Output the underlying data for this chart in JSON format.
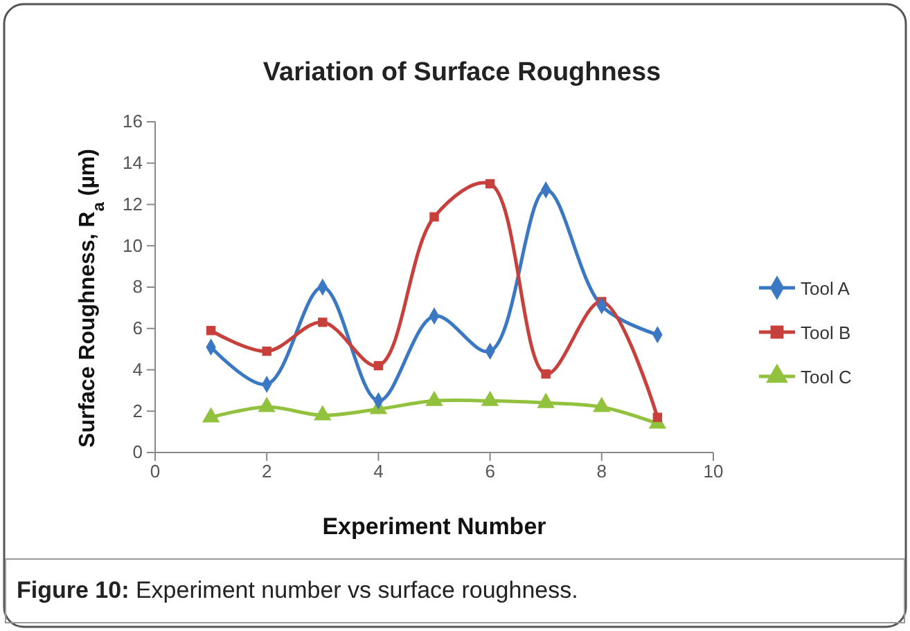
{
  "chart_data": {
    "type": "line",
    "title": "Variation of Surface Roughness",
    "xlabel": "Experiment Number",
    "ylabel": "Surface Roughness, R$_{a}$ (µm)",
    "x": [
      1,
      2,
      3,
      4,
      5,
      6,
      7,
      8,
      9
    ],
    "series": [
      {
        "name": "Tool A",
        "color": "#3a78c4",
        "marker": "diamond",
        "values": [
          5.1,
          3.3,
          8.0,
          2.5,
          6.6,
          4.9,
          12.7,
          7.1,
          5.7
        ]
      },
      {
        "name": "Tool B",
        "color": "#c8403c",
        "marker": "square",
        "values": [
          5.9,
          4.9,
          6.3,
          4.2,
          11.4,
          13.0,
          3.8,
          7.3,
          1.7
        ]
      },
      {
        "name": "Tool C",
        "color": "#92c13e",
        "marker": "triangle",
        "values": [
          1.7,
          2.2,
          1.8,
          2.1,
          2.5,
          2.5,
          2.4,
          2.2,
          1.4
        ]
      }
    ],
    "xlim": [
      0,
      10
    ],
    "xticks": [
      0,
      2,
      4,
      6,
      8,
      10
    ],
    "ylim": [
      0,
      16
    ],
    "yticks": [
      0,
      2,
      4,
      6,
      8,
      10,
      12,
      14,
      16
    ],
    "legend": "right",
    "grid": false,
    "line_style": "solid",
    "annotations": [
      "Figure 10: Experiment number vs surface roughness."
    ]
  }
}
